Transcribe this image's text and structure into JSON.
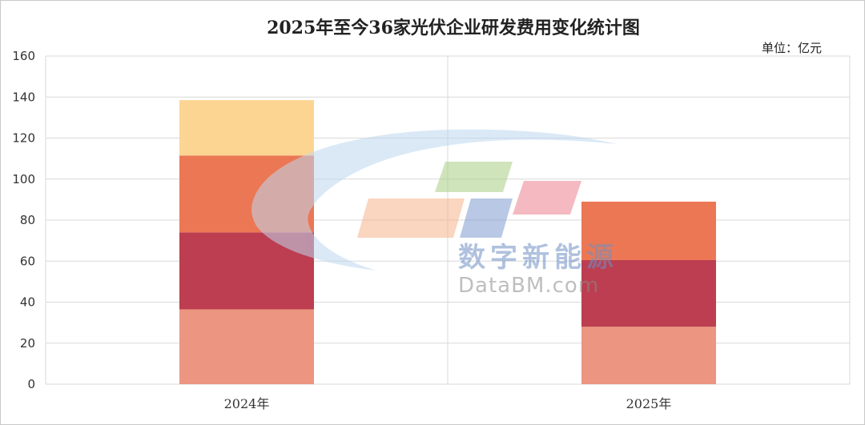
{
  "chart_data": {
    "type": "bar",
    "stacked": true,
    "title": "2025年至今36家光伏企业研发费用变化统计图",
    "unit_label": "单位：亿元",
    "categories": [
      "2024年",
      "2025年"
    ],
    "ylim": [
      0,
      160
    ],
    "yticks": [
      0,
      20,
      40,
      60,
      80,
      100,
      120,
      140,
      160
    ],
    "grid": true,
    "series": [
      {
        "color": "#ec9580",
        "values": [
          36.5,
          28
        ]
      },
      {
        "color": "#bc3e50",
        "values": [
          37.5,
          32.5
        ]
      },
      {
        "color": "#ec7754",
        "values": [
          37.5,
          28.5
        ]
      },
      {
        "color": "#fcd593",
        "values": [
          27,
          0
        ]
      }
    ]
  },
  "watermark": {
    "text_cn": "数字新能源",
    "text_en": "DataBM.com"
  }
}
